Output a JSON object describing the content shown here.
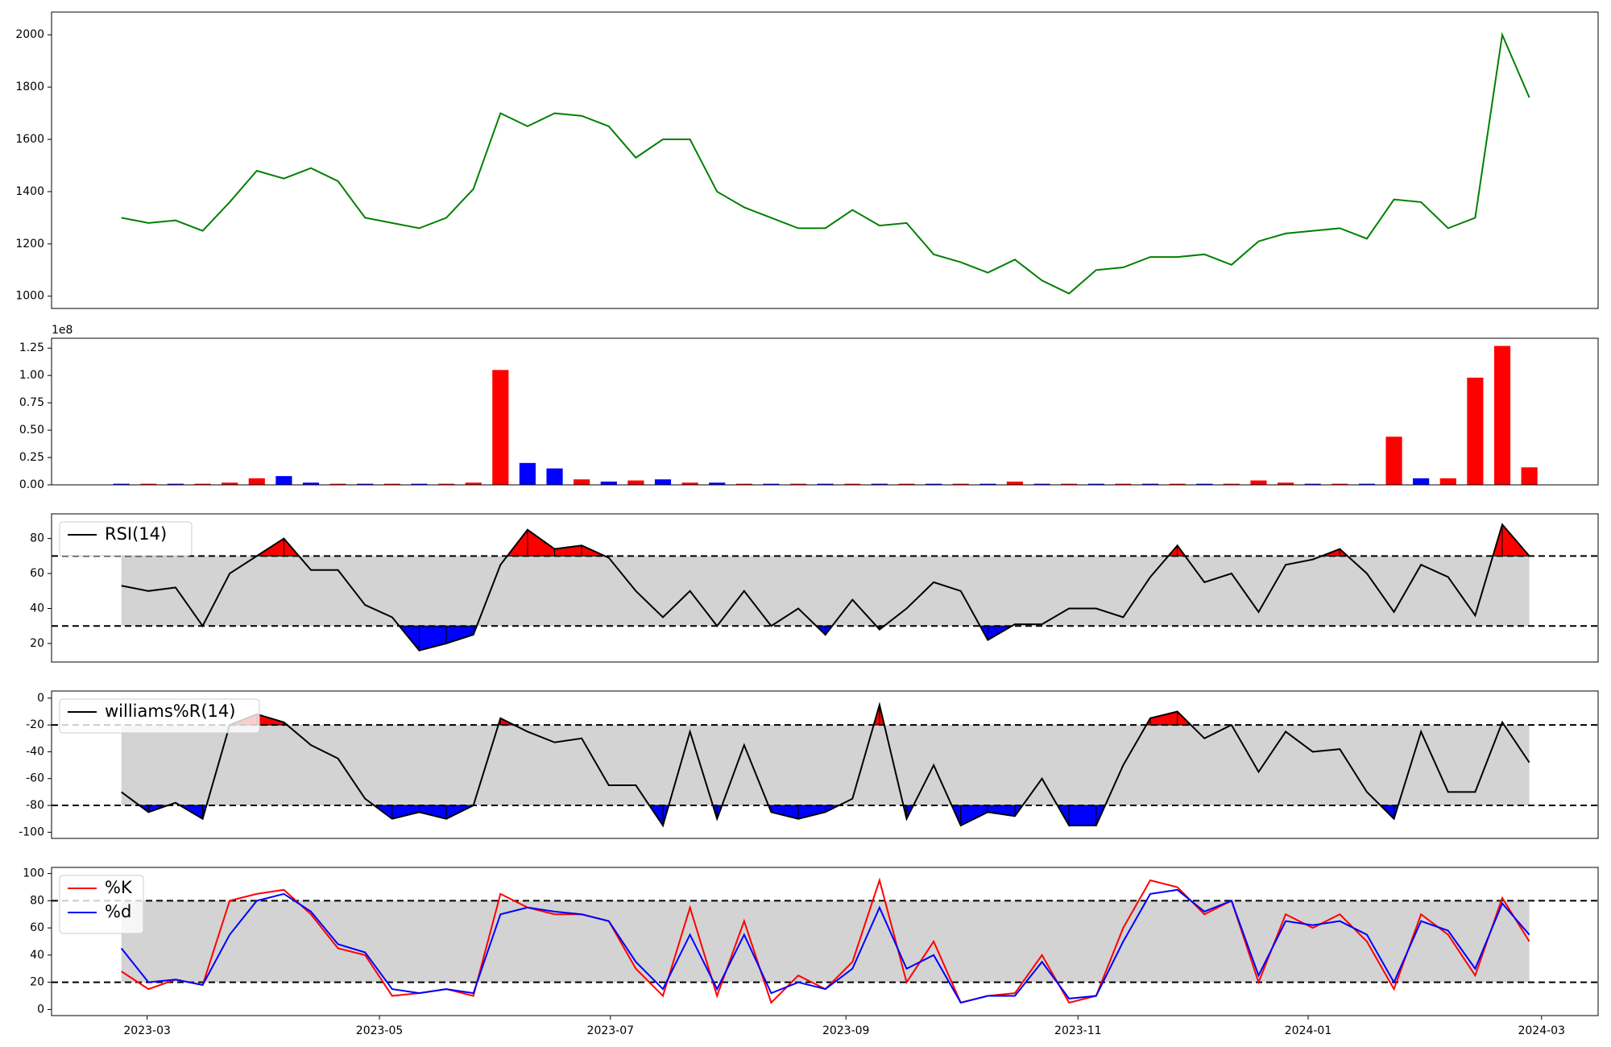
{
  "chart_data": [
    {
      "type": "line",
      "xlim": [
        -2.58,
        54.54
      ],
      "ylim": [
        953,
        2087
      ],
      "yticks": [
        1000,
        1200,
        1400,
        1600,
        1800,
        2000
      ],
      "series": [
        {
          "color": "green",
          "values": [
            1300,
            1280,
            1290,
            1250,
            1360,
            1480,
            1450,
            1490,
            1440,
            1300,
            1280,
            1260,
            1300,
            1410,
            1700,
            1650,
            1700,
            1690,
            1650,
            1530,
            1600,
            1600,
            1400,
            1340,
            1300,
            1260,
            1260,
            1330,
            1270,
            1280,
            1160,
            1130,
            1090,
            1140,
            1060,
            1010,
            1100,
            1110,
            1150,
            1150,
            1160,
            1120,
            1210,
            1240,
            1250,
            1260,
            1220,
            1370,
            1360,
            1260,
            1300,
            2000,
            1760
          ]
        }
      ]
    },
    {
      "type": "bar",
      "xlim": [
        -2.58,
        54.54
      ],
      "ylim": [
        0,
        1.34
      ],
      "offset_label": "1e8",
      "yticks": [
        {
          "value": 0,
          "label": "0.00"
        },
        {
          "value": 0.25,
          "label": "0.25"
        },
        {
          "value": 0.5,
          "label": "0.50"
        },
        {
          "value": 0.75,
          "label": "0.75"
        },
        {
          "value": 1,
          "label": "1.00"
        },
        {
          "value": 1.25,
          "label": "1.25"
        }
      ],
      "series": [
        {
          "values": [
            0.01,
            0.01,
            0.01,
            0.01,
            0.02,
            0.06,
            0.08,
            0.02,
            0.01,
            0.01,
            0.01,
            0.01,
            0.01,
            0.02,
            1.05,
            0.2,
            0.15,
            0.05,
            0.03,
            0.04,
            0.05,
            0.02,
            0.02,
            0.01,
            0.01,
            0.01,
            0.01,
            0.01,
            0.01,
            0.01,
            0.01,
            0.01,
            0.01,
            0.03,
            0.01,
            0.01,
            0.01,
            0.01,
            0.01,
            0.01,
            0.01,
            0.01,
            0.04,
            0.02,
            0.01,
            0.01,
            0.01,
            0.44,
            0.06,
            0.06,
            0.98,
            1.27,
            0.16
          ],
          "colors": [
            "blue",
            "red",
            "blue",
            "red",
            "red",
            "red",
            "blue",
            "blue",
            "red",
            "blue",
            "red",
            "blue",
            "red",
            "red",
            "red",
            "blue",
            "blue",
            "red",
            "blue",
            "red",
            "blue",
            "red",
            "blue",
            "red",
            "blue",
            "red",
            "blue",
            "red",
            "blue",
            "red",
            "blue",
            "red",
            "blue",
            "red",
            "blue",
            "red",
            "blue",
            "red",
            "blue",
            "red",
            "blue",
            "red",
            "red",
            "red",
            "blue",
            "red",
            "blue",
            "red",
            "blue",
            "red",
            "red",
            "red",
            "red"
          ]
        }
      ]
    },
    {
      "type": "line",
      "xlim": [
        -2.58,
        54.54
      ],
      "ylim": [
        9.4,
        94.1
      ],
      "yticks": [
        20,
        40,
        60,
        80
      ],
      "levels": [
        30,
        70
      ],
      "band_color": "#d3d3d3",
      "above_color": "red",
      "below_color": "blue",
      "series": [
        {
          "name": "RSI(14)",
          "color": "black",
          "values": [
            53,
            50,
            52,
            30,
            60,
            70,
            80,
            62,
            62,
            42,
            35,
            16,
            20,
            25,
            65,
            85,
            74,
            76,
            69,
            50,
            35,
            50,
            30,
            50,
            30,
            40,
            25,
            45,
            28,
            40,
            55,
            50,
            22,
            31,
            31,
            40,
            40,
            35,
            58,
            76,
            55,
            60,
            38,
            65,
            68,
            74,
            60,
            38,
            65,
            58,
            36,
            88,
            70
          ]
        }
      ]
    },
    {
      "type": "line",
      "xlim": [
        -2.58,
        54.54
      ],
      "ylim": [
        -104.6,
        5.3
      ],
      "yticks": [
        0,
        -20,
        -40,
        -60,
        -80,
        -100
      ],
      "levels": [
        -80,
        -20
      ],
      "band_color": "#d3d3d3",
      "above_color": "red",
      "below_color": "blue",
      "series": [
        {
          "name": "williams%R(14)",
          "color": "black",
          "values": [
            -70,
            -85,
            -78,
            -90,
            -20,
            -12,
            -18,
            -35,
            -45,
            -75,
            -90,
            -85,
            -90,
            -80,
            -15,
            -25,
            -33,
            -30,
            -65,
            -65,
            -95,
            -25,
            -90,
            -35,
            -85,
            -90,
            -85,
            -75,
            -5,
            -90,
            -50,
            -95,
            -85,
            -88,
            -60,
            -95,
            -95,
            -50,
            -15,
            -10,
            -30,
            -20,
            -55,
            -25,
            -40,
            -38,
            -70,
            -90,
            -25,
            -70,
            -70,
            -18,
            -48
          ]
        }
      ]
    },
    {
      "type": "line",
      "xlim": [
        -2.58,
        54.54
      ],
      "ylim": [
        -4.5,
        104.5
      ],
      "yticks": [
        0,
        20,
        40,
        60,
        80,
        100
      ],
      "levels": [
        20,
        80
      ],
      "band_color": "#d3d3d3",
      "xticks": [
        {
          "value": 0.95,
          "label": "2023-03"
        },
        {
          "value": 9.53,
          "label": "2023-05"
        },
        {
          "value": 18.06,
          "label": "2023-07"
        },
        {
          "value": 26.76,
          "label": "2023-09"
        },
        {
          "value": 35.33,
          "label": "2023-11"
        },
        {
          "value": 43.83,
          "label": "2024-01"
        },
        {
          "value": 52.45,
          "label": "2024-03"
        }
      ],
      "series": [
        {
          "name": "%K",
          "color": "red",
          "values": [
            28,
            15,
            22,
            18,
            80,
            85,
            88,
            70,
            45,
            40,
            10,
            12,
            15,
            10,
            85,
            75,
            70,
            70,
            65,
            30,
            10,
            75,
            10,
            65,
            5,
            25,
            15,
            35,
            95,
            20,
            50,
            5,
            10,
            12,
            40,
            5,
            10,
            60,
            95,
            90,
            70,
            80,
            20,
            70,
            60,
            70,
            50,
            15,
            70,
            55,
            25,
            82,
            50
          ]
        },
        {
          "name": "%d",
          "color": "blue",
          "values": [
            45,
            20,
            22,
            18,
            55,
            80,
            85,
            72,
            48,
            42,
            15,
            12,
            15,
            12,
            70,
            75,
            72,
            70,
            65,
            35,
            15,
            55,
            15,
            55,
            12,
            20,
            15,
            30,
            75,
            30,
            40,
            5,
            10,
            10,
            35,
            8,
            10,
            50,
            85,
            88,
            72,
            80,
            25,
            65,
            62,
            65,
            55,
            20,
            65,
            58,
            30,
            78,
            55
          ]
        }
      ]
    }
  ]
}
